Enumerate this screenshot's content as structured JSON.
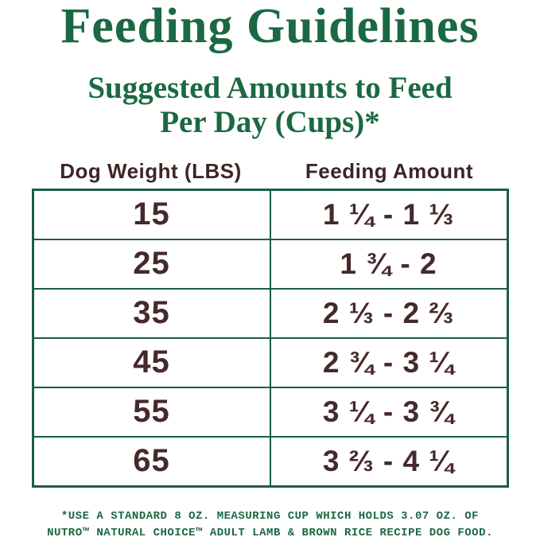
{
  "colors": {
    "title_green": "#1a6942",
    "table_border_green": "#1b5e40",
    "text_brown": "#46292b",
    "footnote_green": "#1a6942",
    "background": "#ffffff"
  },
  "header": {
    "title": "Feeding Guidelines",
    "subtitle_line1": "Suggested Amounts to Feed",
    "subtitle_line2": "Per Day (Cups)*"
  },
  "table": {
    "columns": [
      "Dog Weight (LBS)",
      "Feeding Amount"
    ],
    "rows": [
      {
        "weight": "15",
        "amount": "1 ¼ - 1 ⅓"
      },
      {
        "weight": "25",
        "amount": "1 ¾ - 2"
      },
      {
        "weight": "35",
        "amount": "2 ⅓ - 2 ⅔"
      },
      {
        "weight": "45",
        "amount": "2 ¾ - 3 ¼"
      },
      {
        "weight": "55",
        "amount": "3 ¼ - 3 ¾"
      },
      {
        "weight": "65",
        "amount": "3 ⅔ - 4 ¼"
      }
    ]
  },
  "footnote": {
    "line1": "*USE A STANDARD 8 OZ. MEASURING CUP WHICH HOLDS 3.07 OZ. OF",
    "line2": "NUTRO™ NATURAL CHOICE™ ADULT LAMB & BROWN RICE RECIPE DOG FOOD."
  },
  "chart_data": {
    "type": "table",
    "title": "Feeding Guidelines",
    "subtitle": "Suggested Amounts to Feed Per Day (Cups)*",
    "columns": [
      "Dog Weight (LBS)",
      "Feeding Amount"
    ],
    "rows": [
      [
        "15",
        "1 ¼ - 1 ⅓"
      ],
      [
        "25",
        "1 ¾ - 2"
      ],
      [
        "35",
        "2 ⅓ - 2 ⅔"
      ],
      [
        "45",
        "2 ¾ - 3 ¼"
      ],
      [
        "55",
        "3 ¼ - 3 ¾"
      ],
      [
        "65",
        "3 ⅔ - 4 ¼"
      ]
    ],
    "weights_lbs": [
      15,
      25,
      35,
      45,
      55,
      65
    ],
    "feeding_cups_min": [
      1.25,
      1.75,
      2.33,
      2.75,
      3.25,
      3.67
    ],
    "feeding_cups_max": [
      1.33,
      2,
      2.67,
      3.25,
      3.75,
      4.25
    ],
    "footnote": "*USE A STANDARD 8 OZ. MEASURING CUP WHICH HOLDS 3.07 OZ. OF NUTRO™ NATURAL CHOICE™ ADULT LAMB & BROWN RICE RECIPE DOG FOOD."
  }
}
